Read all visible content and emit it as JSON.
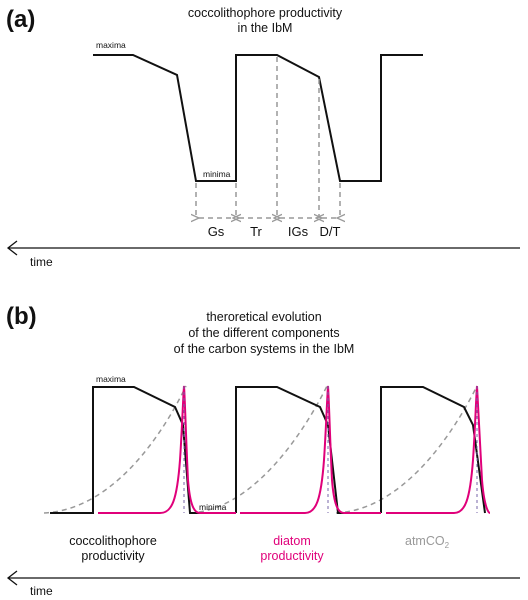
{
  "panel_a": {
    "letter": "(a)",
    "title_lines": [
      "coccolithophore productivity",
      "in the IbM"
    ],
    "maxima_label": "maxima",
    "minima_label": "minima",
    "phases": [
      "Gs",
      "Tr",
      "IGs",
      "D/T"
    ],
    "time_label": "time"
  },
  "panel_b": {
    "letter": "(b)",
    "title_lines": [
      "theroretical evolution",
      "of the different components",
      "of the carbon systems in the IbM"
    ],
    "maxima_label": "maxima",
    "minima_label": "minima",
    "legend": {
      "coccolithophore": [
        "coccolithophore",
        "productivity"
      ],
      "diatom": [
        "diatom",
        "productivity"
      ],
      "atmco2": "atmCO",
      "atmco2_subscript": "2"
    },
    "time_label": "time"
  },
  "colors": {
    "coccolithophore": "#111111",
    "diatom": "#e0007a",
    "atmco2": "#999999",
    "dashed_guides": "#999999"
  }
}
